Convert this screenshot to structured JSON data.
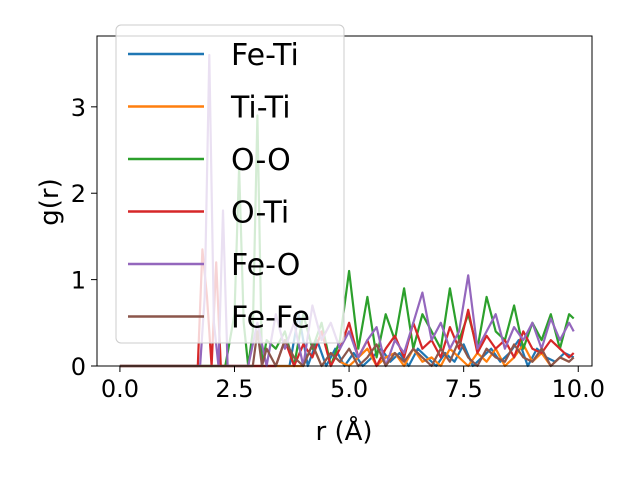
{
  "chart_data": {
    "type": "line",
    "title": "",
    "xlabel": "r (Å)",
    "ylabel": "g(r)",
    "xlim": [
      -0.5,
      10.3
    ],
    "ylim": [
      0,
      3.82
    ],
    "xticks": [
      0.0,
      2.5,
      5.0,
      7.5,
      10.0
    ],
    "xtick_labels": [
      "0.0",
      "2.5",
      "5.0",
      "7.5",
      "10.0"
    ],
    "yticks": [
      0,
      1,
      2,
      3
    ],
    "ytick_labels": [
      "0",
      "1",
      "2",
      "3"
    ],
    "grid": false,
    "legend_position": "upper-left",
    "series": [
      {
        "name": "Fe-Ti",
        "color": "#1f77b4",
        "x": [
          0.0,
          3.7,
          3.9,
          4.1,
          4.3,
          4.5,
          4.7,
          4.9,
          5.1,
          5.3,
          5.5,
          5.7,
          5.9,
          6.1,
          6.3,
          6.5,
          6.7,
          6.9,
          7.1,
          7.3,
          7.5,
          7.7,
          7.9,
          8.1,
          8.3,
          8.5,
          8.7,
          8.9,
          9.1,
          9.3,
          9.5,
          9.7,
          9.9
        ],
        "y": [
          0.0,
          0.0,
          0.6,
          0.0,
          0.3,
          0.0,
          0.2,
          0.0,
          0.15,
          0.0,
          0.1,
          0.2,
          0.05,
          0.15,
          0.0,
          0.2,
          0.1,
          0.0,
          0.15,
          0.05,
          0.25,
          0.0,
          0.1,
          0.2,
          0.05,
          0.15,
          0.3,
          0.0,
          0.2,
          0.1,
          0.05,
          0.15,
          0.1
        ]
      },
      {
        "name": "Ti-Ti",
        "color": "#ff7f0e",
        "x": [
          0.0,
          4.0,
          4.2,
          4.4,
          4.6,
          4.8,
          5.0,
          5.2,
          5.4,
          5.6,
          5.8,
          6.0,
          6.2,
          6.4,
          6.6,
          6.8,
          7.0,
          7.2,
          7.4,
          7.6,
          7.8,
          8.0,
          8.2,
          8.4,
          8.6,
          8.8,
          9.0,
          9.2,
          9.4,
          9.6,
          9.8
        ],
        "y": [
          0.0,
          0.0,
          0.25,
          0.0,
          0.15,
          0.05,
          0.0,
          0.1,
          0.2,
          0.0,
          0.1,
          0.15,
          0.0,
          0.2,
          0.05,
          0.1,
          0.0,
          0.2,
          0.1,
          0.0,
          0.15,
          0.05,
          0.2,
          0.0,
          0.1,
          0.25,
          0.05,
          0.15,
          0.0,
          0.1,
          0.05
        ]
      },
      {
        "name": "O-O",
        "color": "#2ca02c",
        "x": [
          0.0,
          2.3,
          2.5,
          2.6,
          2.7,
          2.8,
          2.9,
          3.0,
          3.1,
          3.2,
          3.4,
          3.6,
          3.8,
          4.0,
          4.2,
          4.4,
          4.6,
          4.8,
          5.0,
          5.2,
          5.4,
          5.6,
          5.8,
          6.0,
          6.2,
          6.4,
          6.6,
          6.8,
          7.0,
          7.2,
          7.4,
          7.6,
          7.8,
          8.0,
          8.2,
          8.4,
          8.6,
          8.8,
          9.0,
          9.2,
          9.4,
          9.6,
          9.8,
          9.9
        ],
        "y": [
          0.0,
          0.0,
          0.6,
          2.3,
          0.5,
          0.0,
          0.4,
          2.9,
          0.0,
          0.3,
          0.2,
          0.4,
          0.0,
          0.6,
          0.2,
          0.5,
          0.0,
          0.3,
          1.1,
          0.2,
          0.8,
          0.1,
          0.6,
          0.3,
          0.9,
          0.2,
          0.6,
          0.4,
          0.2,
          0.9,
          0.3,
          0.6,
          0.2,
          0.8,
          0.4,
          0.3,
          0.7,
          0.2,
          0.5,
          0.3,
          0.6,
          0.2,
          0.6,
          0.55
        ]
      },
      {
        "name": "O-Ti",
        "color": "#d62728",
        "x": [
          0.0,
          1.7,
          1.8,
          1.9,
          2.0,
          2.1,
          2.2,
          2.3,
          3.4,
          3.6,
          3.8,
          4.0,
          4.2,
          4.4,
          4.6,
          4.8,
          5.0,
          5.2,
          5.4,
          5.6,
          5.8,
          6.0,
          6.2,
          6.4,
          6.6,
          6.8,
          7.0,
          7.2,
          7.4,
          7.6,
          7.8,
          8.0,
          8.2,
          8.4,
          8.6,
          8.8,
          9.0,
          9.2,
          9.4,
          9.6,
          9.8,
          9.9
        ],
        "y": [
          0.0,
          0.0,
          1.35,
          0.8,
          0.0,
          1.2,
          0.0,
          0.0,
          0.0,
          0.3,
          0.0,
          0.25,
          0.1,
          0.4,
          0.0,
          0.2,
          0.5,
          0.1,
          0.3,
          0.0,
          0.2,
          0.35,
          0.1,
          0.5,
          0.2,
          0.3,
          0.1,
          0.45,
          0.2,
          0.65,
          0.15,
          0.35,
          0.2,
          0.3,
          0.1,
          0.4,
          0.2,
          0.15,
          0.3,
          0.2,
          0.1,
          0.15
        ]
      },
      {
        "name": "Fe-O",
        "color": "#9467bd",
        "x": [
          0.0,
          1.75,
          1.85,
          1.95,
          2.05,
          2.15,
          2.25,
          2.35,
          2.8,
          3.0,
          3.2,
          3.4,
          3.6,
          3.8,
          4.0,
          4.2,
          4.4,
          4.6,
          4.8,
          5.0,
          5.2,
          5.4,
          5.6,
          5.8,
          6.0,
          6.2,
          6.4,
          6.6,
          6.8,
          7.0,
          7.2,
          7.4,
          7.6,
          7.8,
          8.0,
          8.2,
          8.4,
          8.6,
          8.8,
          9.0,
          9.2,
          9.4,
          9.6,
          9.8,
          9.9
        ],
        "y": [
          0.0,
          0.0,
          0.8,
          3.6,
          0.5,
          0.0,
          1.8,
          0.0,
          0.0,
          0.5,
          0.0,
          0.6,
          0.2,
          0.5,
          0.0,
          0.7,
          0.3,
          0.5,
          0.2,
          0.4,
          0.1,
          0.3,
          0.45,
          0.0,
          0.3,
          0.15,
          0.5,
          0.85,
          0.3,
          0.5,
          0.2,
          0.4,
          1.05,
          0.2,
          0.4,
          0.6,
          0.2,
          0.45,
          0.3,
          0.5,
          0.2,
          0.55,
          0.3,
          0.5,
          0.4
        ]
      },
      {
        "name": "Fe-Fe",
        "color": "#8c564b",
        "x": [
          0.0,
          2.9,
          3.0,
          3.1,
          3.2,
          3.4,
          3.6,
          3.8,
          4.0,
          4.2,
          4.4,
          4.6,
          4.8,
          5.0,
          5.2,
          5.4,
          5.6,
          5.8,
          6.0,
          6.2,
          6.4,
          6.6,
          6.8,
          7.0,
          7.2,
          7.4,
          7.6,
          7.8,
          8.0,
          8.2,
          8.4,
          8.6,
          8.8,
          9.0,
          9.2,
          9.4,
          9.6,
          9.8,
          9.9
        ],
        "y": [
          0.0,
          0.0,
          0.4,
          0.0,
          0.2,
          0.0,
          0.3,
          0.1,
          0.0,
          0.25,
          0.0,
          0.15,
          0.05,
          0.2,
          0.0,
          0.1,
          0.25,
          0.0,
          0.15,
          0.05,
          0.2,
          0.1,
          0.0,
          0.2,
          0.05,
          0.3,
          0.1,
          0.0,
          0.2,
          0.1,
          0.05,
          0.25,
          0.1,
          0.05,
          0.2,
          0.0,
          0.1,
          0.05,
          0.1
        ]
      }
    ]
  }
}
